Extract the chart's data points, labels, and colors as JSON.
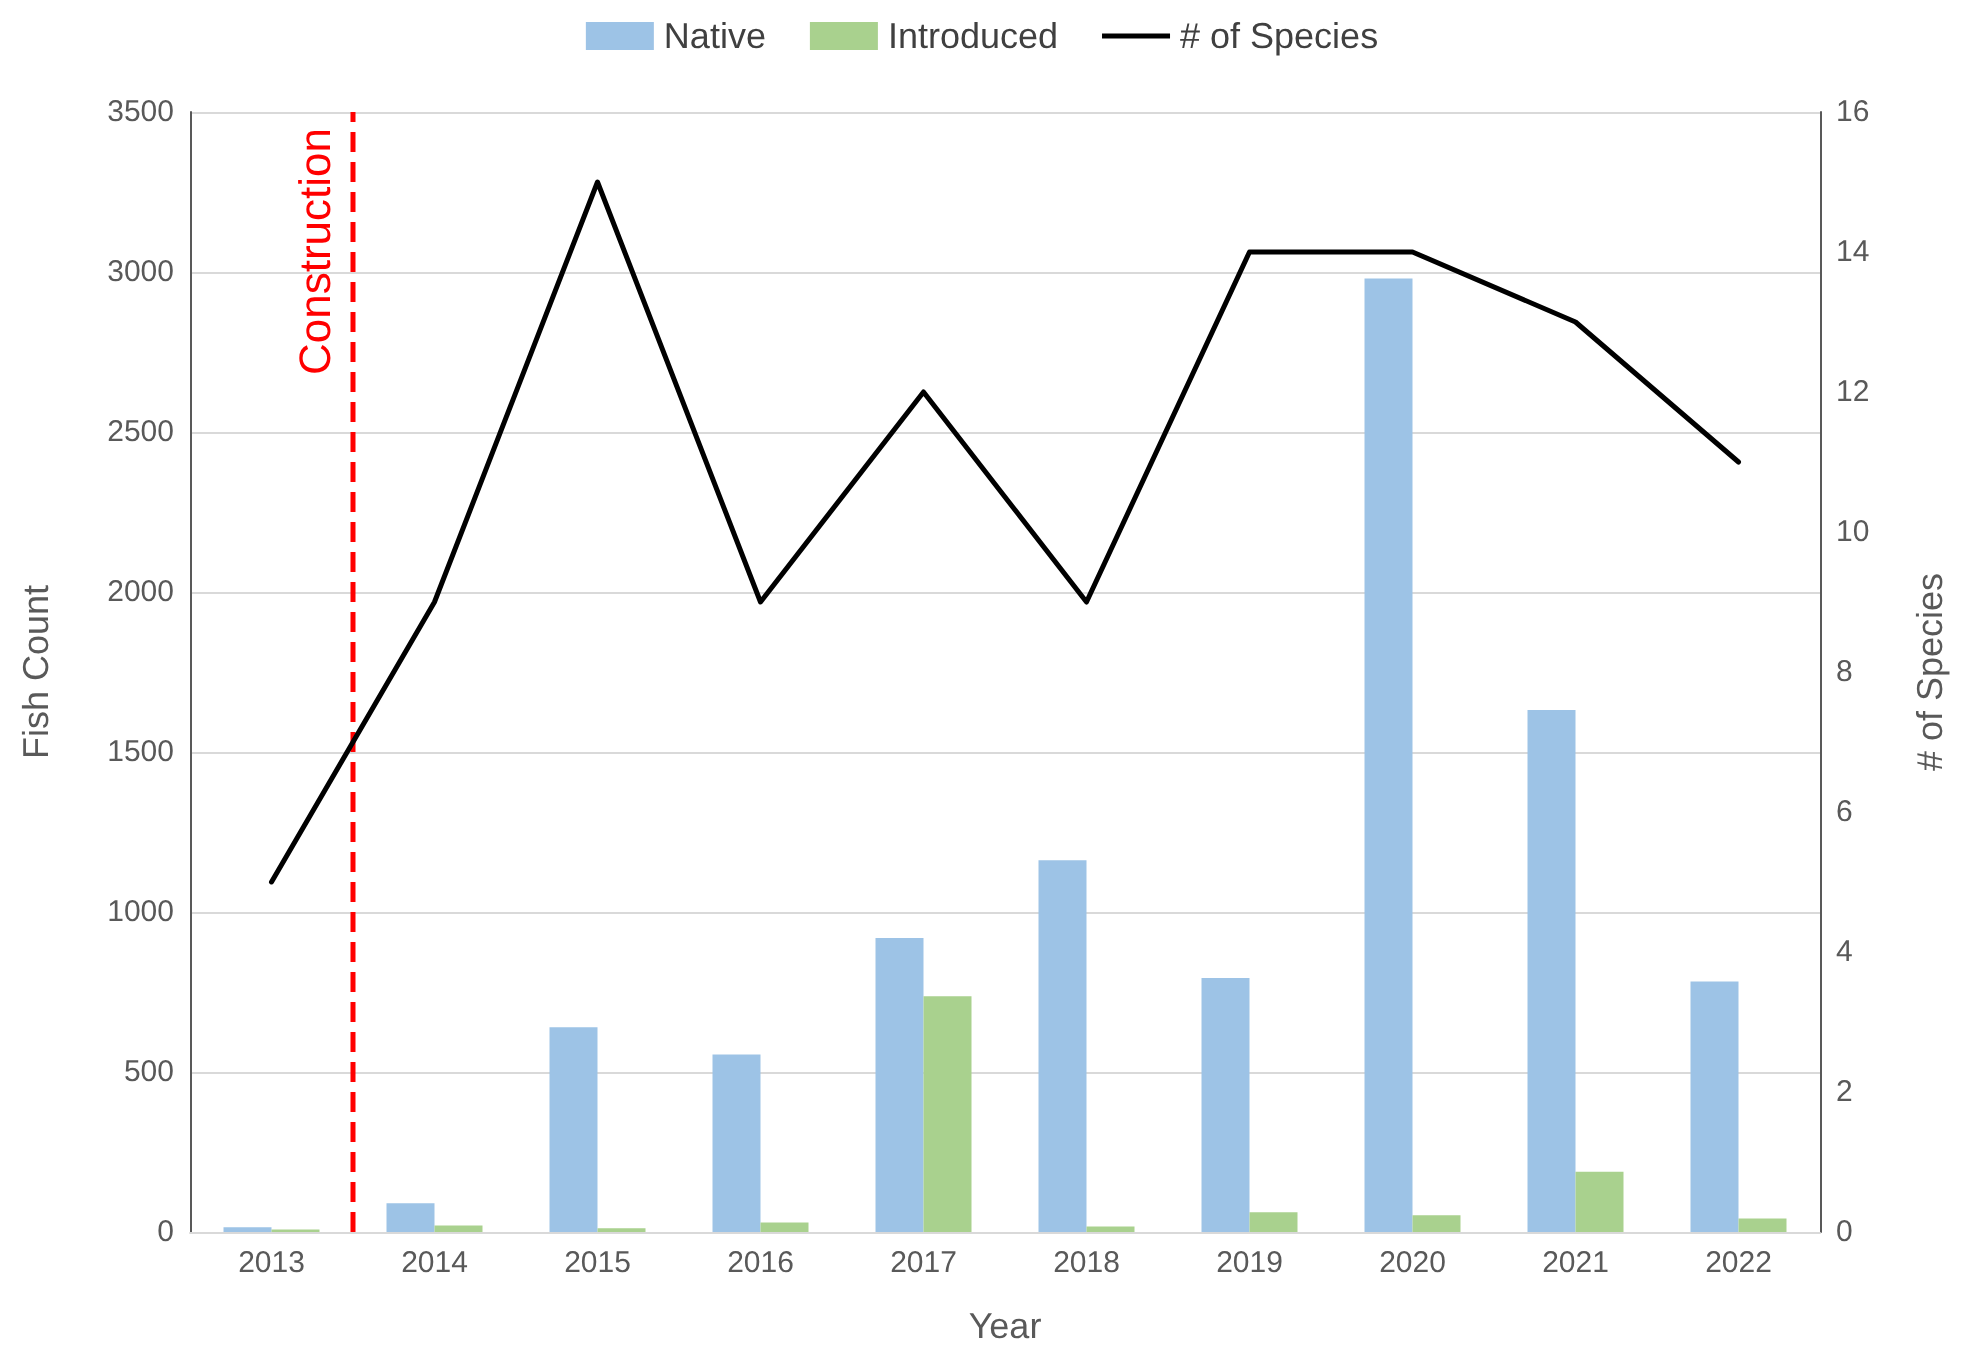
{
  "chart_data": {
    "type": "bar",
    "xlabel": "Year",
    "ylabel": "Fish Count",
    "y2label": "# of Species",
    "x": [
      2013,
      2014,
      2015,
      2016,
      2017,
      2018,
      2019,
      2020,
      2021,
      2022
    ],
    "xlim": [
      2012.5,
      2022.5
    ],
    "xticks": [
      2013,
      2014,
      2015,
      2016,
      2017,
      2018,
      2019,
      2020,
      2021,
      2022
    ],
    "ylim": [
      0,
      3500
    ],
    "yticks": [
      0,
      500,
      1000,
      1500,
      2000,
      2500,
      3000,
      3500
    ],
    "y2lim": [
      0,
      16
    ],
    "y2ticks": [
      0,
      2,
      4,
      6,
      8,
      10,
      12,
      14,
      16
    ],
    "series": [
      {
        "name": "Native",
        "color": "#9dc3e6",
        "values": [
          15,
          90,
          640,
          555,
          919,
          1162,
          794,
          2980,
          1631,
          783
        ]
      },
      {
        "name": "Introduced",
        "color": "#a9d18e",
        "values": [
          8,
          20,
          12,
          30,
          737,
          17,
          62,
          52,
          188,
          42
        ]
      },
      {
        "name": "# of Species",
        "type": "line",
        "axis": "y2",
        "color": "#000000",
        "marker": "none",
        "values": [
          5,
          9,
          15,
          9,
          12,
          9,
          14,
          14,
          13,
          11
        ]
      }
    ],
    "ref_lines": [
      {
        "axis": "x",
        "value": 2013.5,
        "label": "Construction",
        "color": "#ff0000",
        "line_style": "dashed"
      }
    ],
    "grid": "y",
    "legend": "top"
  }
}
